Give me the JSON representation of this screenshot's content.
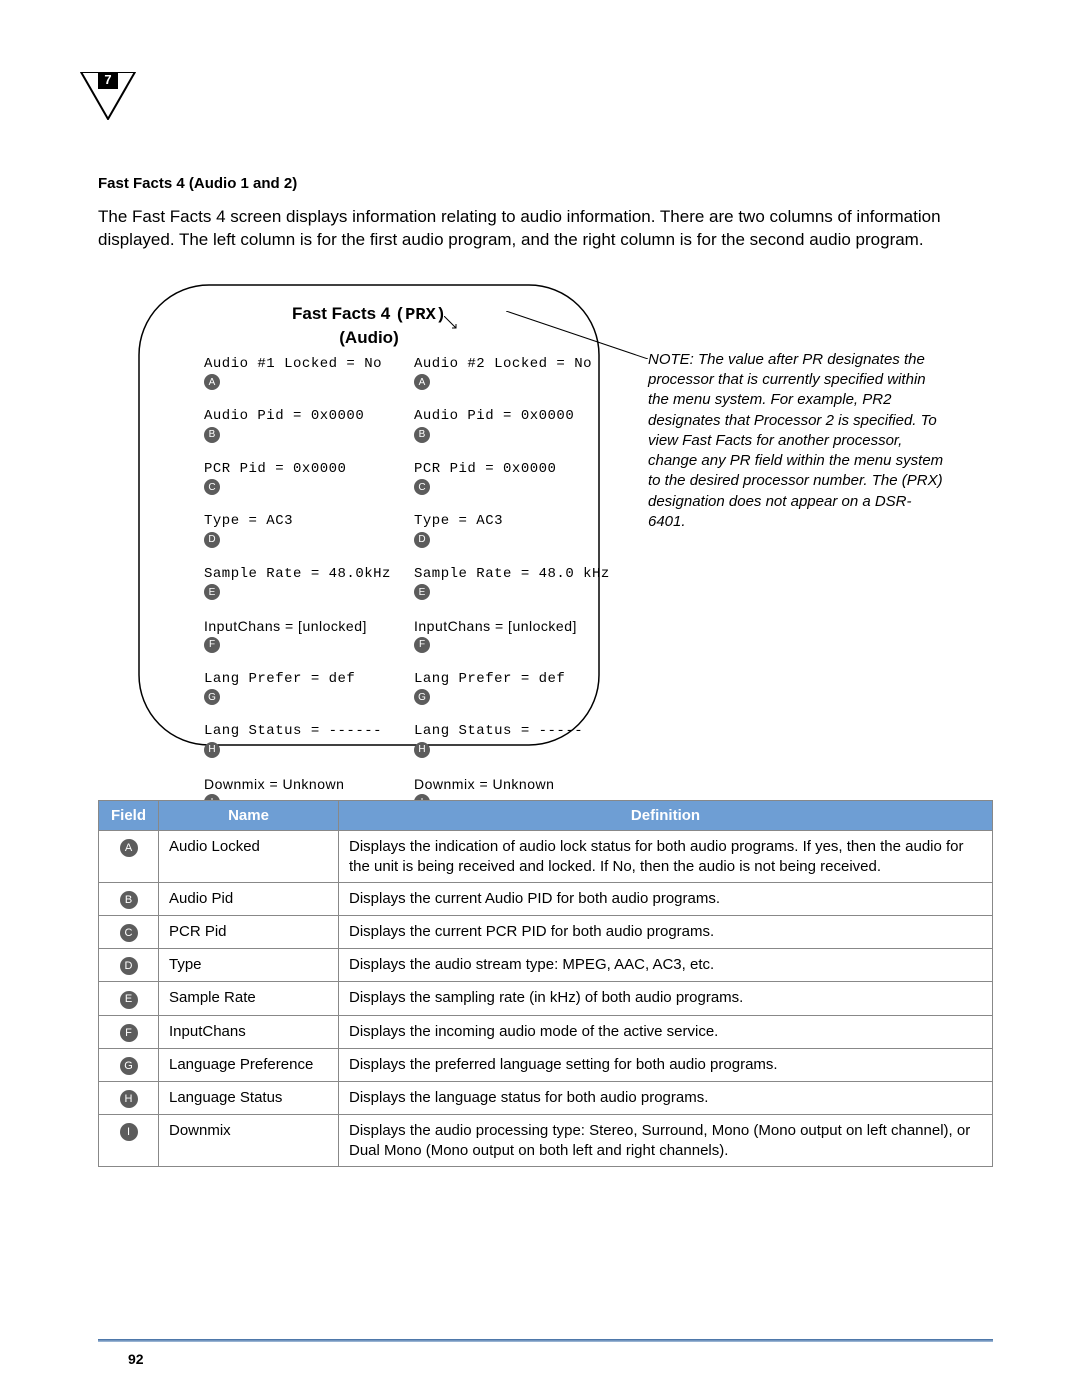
{
  "chapter_badge": "7",
  "section_heading": "Fast Facts 4 (Audio 1 and 2)",
  "intro_paragraph": "The Fast Facts 4 screen displays information relating to audio information. There are two columns of information displayed. The left column is for the first audio program, and the right column is for the second audio program.",
  "screen": {
    "title_prefix": "Fast Facts 4",
    "title_suffix": "(PRX)",
    "subtitle": "(Audio)",
    "rows_left": [
      {
        "letter": "A",
        "text": "Audio #1 Locked = No",
        "mono": true
      },
      {
        "letter": "B",
        "text": "Audio Pid = 0x0000",
        "mono": true
      },
      {
        "letter": "C",
        "text": "PCR Pid = 0x0000",
        "mono": true
      },
      {
        "letter": "D",
        "text": "Type = AC3",
        "mono": true
      },
      {
        "letter": "E",
        "text": "Sample Rate = 48.0kHz",
        "mono": true
      },
      {
        "letter": "F",
        "text": "InputChans = [unlocked]",
        "mono": false
      },
      {
        "letter": "G",
        "text": "Lang Prefer = def",
        "mono": true
      },
      {
        "letter": "H",
        "text": "Lang Status = ------",
        "mono": true
      },
      {
        "letter": "I",
        "text": "Downmix = Unknown",
        "mono": false
      }
    ],
    "rows_right": [
      {
        "letter": "A",
        "text": "Audio #2 Locked = No",
        "mono": true
      },
      {
        "letter": "B",
        "text": "Audio Pid = 0x0000",
        "mono": true
      },
      {
        "letter": "C",
        "text": "PCR Pid = 0x0000",
        "mono": true
      },
      {
        "letter": "D",
        "text": "Type = AC3",
        "mono": true
      },
      {
        "letter": "E",
        "text": "Sample Rate = 48.0 kHz",
        "mono": true
      },
      {
        "letter": "F",
        "text": "InputChans = [unlocked]",
        "mono": false
      },
      {
        "letter": "G",
        "text": "Lang Prefer = def",
        "mono": true
      },
      {
        "letter": "H",
        "text": "Lang Status = -----",
        "mono": true
      },
      {
        "letter": "I",
        "text": "Downmix = Unknown",
        "mono": false
      }
    ]
  },
  "note_text": "NOTE: The value after PR designates the processor that is currently specified within the menu system. For example, PR2 designates that Processor 2 is specified. To view Fast Facts for another processor, change any PR field within the menu system to the desired processor number. The (PRX) designation does not appear on a DSR-6401.",
  "table": {
    "headers": {
      "field": "Field",
      "name": "Name",
      "definition": "Definition"
    },
    "rows": [
      {
        "letter": "A",
        "name": "Audio Locked",
        "definition": "Displays the indication of audio lock status for both audio programs. If yes, then the audio for the unit is being received and locked. If No, then the audio is not being received."
      },
      {
        "letter": "B",
        "name": "Audio Pid",
        "definition": "Displays the current Audio PID for both audio programs."
      },
      {
        "letter": "C",
        "name": "PCR Pid",
        "definition": "Displays the current PCR PID for both audio programs."
      },
      {
        "letter": "D",
        "name": "Type",
        "definition": "Displays the audio stream type: MPEG, AAC, AC3, etc."
      },
      {
        "letter": "E",
        "name": "Sample Rate",
        "definition": "Displays the sampling rate (in kHz) of both audio programs."
      },
      {
        "letter": "F",
        "name": "InputChans",
        "definition": "Displays the incoming audio mode of the active service."
      },
      {
        "letter": "G",
        "name": "Language Preference",
        "definition": "Displays the preferred language setting for both audio programs."
      },
      {
        "letter": "H",
        "name": "Language Status",
        "definition": "Displays the language status for both audio programs."
      },
      {
        "letter": "I",
        "name": "Downmix",
        "definition": "Displays the audio processing type: Stereo, Surround, Mono (Mono output on left channel), or Dual Mono (Mono output on both left and right channels)."
      }
    ]
  },
  "page_number": "92",
  "colors": {
    "table_header_bg": "#6e9ed4",
    "bullet_bg": "#5c5c5c"
  }
}
